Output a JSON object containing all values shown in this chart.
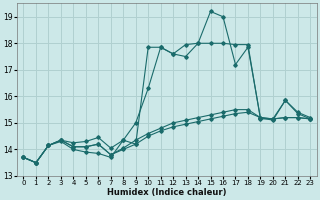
{
  "xlabel": "Humidex (Indice chaleur)",
  "bg_color": "#cce8e8",
  "grid_color": "#b0d0d0",
  "line_color": "#1a6b6b",
  "xlim": [
    -0.5,
    23.5
  ],
  "ylim": [
    13.0,
    19.5
  ],
  "yticks": [
    13,
    14,
    15,
    16,
    17,
    18,
    19
  ],
  "xticks": [
    0,
    1,
    2,
    3,
    4,
    5,
    6,
    7,
    8,
    9,
    10,
    11,
    12,
    13,
    14,
    15,
    16,
    17,
    18,
    19,
    20,
    21,
    22,
    23
  ],
  "series": [
    [
      13.7,
      13.5,
      14.15,
      14.3,
      14.0,
      13.9,
      13.85,
      13.7,
      14.35,
      14.2,
      17.85,
      17.85,
      17.6,
      17.5,
      18.0,
      19.2,
      19.0,
      17.2,
      17.85,
      15.2,
      15.1,
      15.85,
      15.4,
      15.2
    ],
    [
      13.7,
      13.5,
      14.15,
      14.35,
      14.25,
      14.3,
      14.45,
      14.05,
      14.35,
      15.0,
      16.3,
      17.85,
      17.6,
      17.95,
      18.0,
      18.0,
      18.0,
      17.95,
      17.95,
      15.15,
      15.15,
      15.85,
      15.35,
      15.15
    ],
    [
      13.7,
      13.5,
      14.15,
      14.35,
      14.1,
      14.1,
      14.2,
      13.8,
      14.0,
      14.2,
      14.5,
      14.7,
      14.85,
      14.95,
      15.05,
      15.15,
      15.25,
      15.35,
      15.4,
      15.2,
      15.15,
      15.2,
      15.2,
      15.15
    ],
    [
      13.7,
      13.5,
      14.15,
      14.35,
      14.1,
      14.1,
      14.2,
      13.8,
      14.05,
      14.35,
      14.6,
      14.8,
      15.0,
      15.1,
      15.2,
      15.3,
      15.4,
      15.5,
      15.5,
      15.2,
      15.15,
      15.2,
      15.2,
      15.15
    ]
  ]
}
